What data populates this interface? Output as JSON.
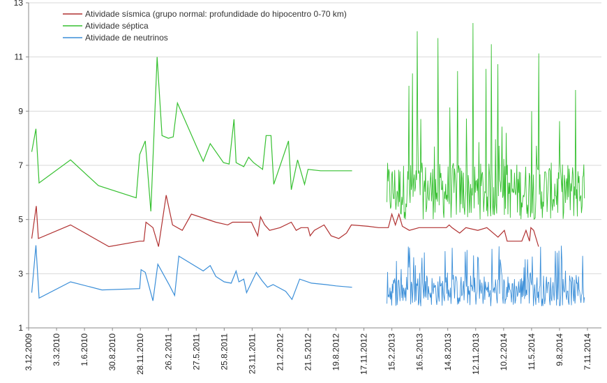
{
  "chart_data": {
    "type": "line",
    "title": "",
    "xlabel": "",
    "ylabel": "",
    "ylim": [
      1,
      13
    ],
    "y_ticks": [
      "1",
      "3",
      "5",
      "7",
      "9",
      "11",
      "13"
    ],
    "x_tick_labels": [
      "3.12.2009",
      "3.3.2010",
      "1.6.2010",
      "30.8.2010",
      "28.11.2010",
      "26.2.2011",
      "27.5.2011",
      "25.8.2011",
      "23.11.2011",
      "21.2.2012",
      "21.5.2012",
      "19.8.2012",
      "17.11.2012",
      "15.2.2013",
      "16.5.2013",
      "14.8.2013",
      "12.11.2013",
      "10.2.2014",
      "11.5.2014",
      "9.8.2014",
      "7.11.2014"
    ],
    "grid": "horizontal",
    "legend_position": "top-left",
    "series": [
      {
        "name": "Atividade sísmica (grupo normal: profundidade do hipocentro 0-70 km)",
        "color": "#b03030",
        "points": [
          [
            0.45,
            4.3
          ],
          [
            1.1,
            5.5
          ],
          [
            1.4,
            4.3
          ],
          [
            6.0,
            4.8
          ],
          [
            11.5,
            4.0
          ],
          [
            15.9,
            4.2
          ],
          [
            16.5,
            4.2
          ],
          [
            16.8,
            4.9
          ],
          [
            17.8,
            4.7
          ],
          [
            18.6,
            4.0
          ],
          [
            19.7,
            5.9
          ],
          [
            20.6,
            4.8
          ],
          [
            22.0,
            4.6
          ],
          [
            23.3,
            5.2
          ],
          [
            26.8,
            4.9
          ],
          [
            28.5,
            4.8
          ],
          [
            29.2,
            4.9
          ],
          [
            31.9,
            4.9
          ],
          [
            32.8,
            4.4
          ],
          [
            33.2,
            5.1
          ],
          [
            33.8,
            4.8
          ],
          [
            34.5,
            4.6
          ],
          [
            36.0,
            4.7
          ],
          [
            37.6,
            4.9
          ],
          [
            38.3,
            4.6
          ],
          [
            39.0,
            4.7
          ],
          [
            40.0,
            4.7
          ],
          [
            40.3,
            4.4
          ],
          [
            40.9,
            4.6
          ],
          [
            42.3,
            4.8
          ],
          [
            43.3,
            4.4
          ],
          [
            44.4,
            4.3
          ],
          [
            45.5,
            4.5
          ],
          [
            46.2,
            4.8
          ],
          [
            48.6,
            4.75
          ],
          [
            50.1,
            4.7
          ],
          [
            51.5,
            4.7
          ],
          [
            52.0,
            5.2
          ],
          [
            52.5,
            4.8
          ],
          [
            53.0,
            5.2
          ],
          [
            53.5,
            4.75
          ],
          [
            54.5,
            4.6
          ],
          [
            55.9,
            4.7
          ],
          [
            59.8,
            4.7
          ],
          [
            60.2,
            4.8
          ],
          [
            60.6,
            4.7
          ],
          [
            61.7,
            4.5
          ],
          [
            62.6,
            4.7
          ],
          [
            64.3,
            4.6
          ],
          [
            65.6,
            4.7
          ],
          [
            67.2,
            4.35
          ],
          [
            68.1,
            4.6
          ],
          [
            68.5,
            4.2
          ],
          [
            70.6,
            4.2
          ],
          [
            71.2,
            4.6
          ],
          [
            71.7,
            4.2
          ],
          [
            71.9,
            4.7
          ],
          [
            72.3,
            4.6
          ],
          [
            73.0,
            4.0
          ]
        ]
      },
      {
        "name": "Atividade séptica",
        "color": "#36c030",
        "dense_range": {
          "x": [
            51.3,
            79.6
          ],
          "base_low": 5.0,
          "base_high": 7.0,
          "max": 12.3
        },
        "points": [
          [
            0.45,
            7.5
          ],
          [
            1.05,
            8.35
          ],
          [
            1.5,
            6.35
          ],
          [
            6.0,
            7.2
          ],
          [
            10.0,
            6.25
          ],
          [
            15.4,
            5.8
          ],
          [
            15.9,
            7.4
          ],
          [
            16.7,
            7.9
          ],
          [
            17.5,
            5.3
          ],
          [
            18.4,
            11.0
          ],
          [
            19.1,
            8.1
          ],
          [
            20.0,
            8.0
          ],
          [
            20.7,
            8.05
          ],
          [
            21.3,
            9.3
          ],
          [
            24.2,
            7.6
          ],
          [
            25.0,
            7.15
          ],
          [
            26.0,
            7.8
          ],
          [
            27.9,
            7.1
          ],
          [
            28.7,
            7.05
          ],
          [
            29.4,
            8.7
          ],
          [
            29.7,
            7.1
          ],
          [
            30.8,
            6.95
          ],
          [
            31.5,
            7.3
          ],
          [
            32.2,
            7.1
          ],
          [
            33.5,
            6.85
          ],
          [
            34.0,
            8.1
          ],
          [
            34.7,
            8.1
          ],
          [
            35.1,
            6.3
          ],
          [
            37.2,
            7.9
          ],
          [
            37.6,
            6.1
          ],
          [
            38.5,
            7.2
          ],
          [
            39.5,
            6.3
          ],
          [
            40.0,
            6.85
          ],
          [
            41.8,
            6.8
          ],
          [
            44.2,
            6.8
          ],
          [
            46.3,
            6.8
          ]
        ]
      },
      {
        "name": "Atividade de neutrinos",
        "color": "#3a8ed8",
        "dense_range": {
          "x": [
            51.3,
            79.6
          ],
          "base_low": 1.8,
          "base_high": 2.9,
          "max": 4.1
        },
        "points": [
          [
            0.45,
            2.3
          ],
          [
            1.05,
            4.05
          ],
          [
            1.5,
            2.1
          ],
          [
            6.0,
            2.7
          ],
          [
            10.5,
            2.4
          ],
          [
            15.9,
            2.45
          ],
          [
            16.1,
            3.15
          ],
          [
            16.7,
            3.05
          ],
          [
            17.8,
            2.0
          ],
          [
            18.5,
            3.35
          ],
          [
            20.1,
            2.6
          ],
          [
            20.9,
            2.2
          ],
          [
            21.5,
            3.65
          ],
          [
            25.0,
            3.1
          ],
          [
            26.0,
            3.3
          ],
          [
            26.8,
            2.9
          ],
          [
            28.0,
            2.7
          ],
          [
            29.0,
            2.65
          ],
          [
            29.7,
            3.1
          ],
          [
            30.1,
            2.7
          ],
          [
            30.8,
            2.8
          ],
          [
            31.2,
            2.3
          ],
          [
            32.6,
            3.05
          ],
          [
            33.4,
            2.75
          ],
          [
            34.2,
            2.5
          ],
          [
            35.0,
            2.6
          ],
          [
            36.8,
            2.35
          ],
          [
            37.7,
            2.05
          ],
          [
            38.8,
            2.8
          ],
          [
            40.5,
            2.65
          ],
          [
            42.5,
            2.6
          ],
          [
            44.0,
            2.55
          ],
          [
            46.3,
            2.5
          ]
        ]
      }
    ]
  }
}
